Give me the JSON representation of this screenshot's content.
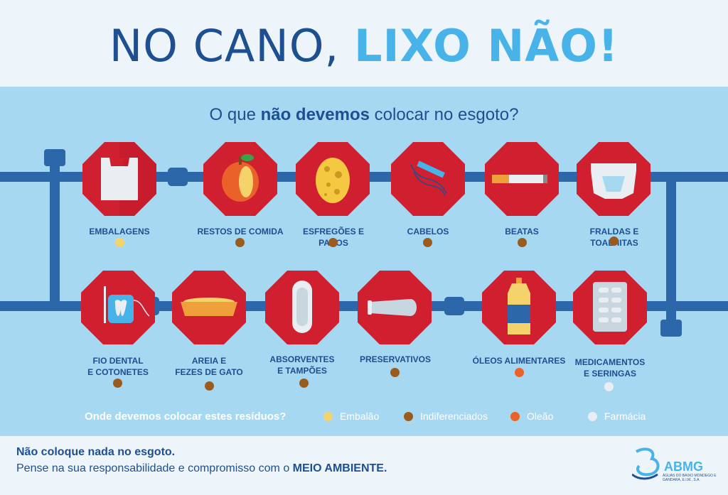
{
  "header": {
    "title_part1": "NO CANO, ",
    "title_part2": "LIXO NÃO!"
  },
  "subtitle": {
    "pre": "O que ",
    "bold": "não devemos",
    "post": " colocar no esgoto?"
  },
  "items_row1": [
    {
      "label": "EMBALAGENS",
      "icon": "plastic-bag-icon",
      "bin": "Embalão"
    },
    {
      "label": "RESTOS DE COMIDA",
      "icon": "apple-core-icon",
      "bin": "Indiferenciados"
    },
    {
      "label": "ESFREGÕES E PANOS",
      "icon": "sponge-icon",
      "bin": "Indiferenciados"
    },
    {
      "label": "CABELOS",
      "icon": "comb-icon",
      "bin": "Indiferenciados"
    },
    {
      "label": "BEATAS",
      "icon": "cigarette-icon",
      "bin": "Indiferenciados"
    },
    {
      "label": "FRALDAS E TOALHITAS",
      "icon": "diaper-icon",
      "bin": "Indiferenciados"
    }
  ],
  "items_row2": [
    {
      "label1": "FIO DENTAL",
      "label2": "E COTONETES",
      "icon": "dental-floss-icon",
      "bin": "Indiferenciados"
    },
    {
      "label1": "AREIA E",
      "label2": "FEZES DE GATO",
      "icon": "litter-tray-icon",
      "bin": "Indiferenciados"
    },
    {
      "label1": "ABSORVENTES",
      "label2": "E TAMPÕES",
      "icon": "sanitary-pad-icon",
      "bin": "Indiferenciados"
    },
    {
      "label1": "PRESERVATIVOS",
      "label2": "",
      "icon": "condom-icon",
      "bin": "Indiferenciados"
    },
    {
      "label1": "ÓLEOS ALIMENTARES",
      "label2": "",
      "icon": "oil-bottle-icon",
      "bin": "Oleão"
    },
    {
      "label1": "MEDICAMENTOS",
      "label2": "E SERINGAS",
      "icon": "pill-blister-icon",
      "bin": "Farmácia"
    }
  ],
  "legend": {
    "question": "Onde devemos colocar estes resíduos?",
    "entries": [
      {
        "label": "Embalão",
        "color": "#f5d36b"
      },
      {
        "label": "Indiferenciados",
        "color": "#9a5b1f"
      },
      {
        "label": "Oleão",
        "color": "#e8622a"
      },
      {
        "label": "Farmácia",
        "color": "#e8eef2"
      }
    ]
  },
  "footer": {
    "line1": "Não coloque nada no esgoto.",
    "line2_pre": "Pense na sua responsabilidade e compromisso com o ",
    "line2_bold": "MEIO AMBIENTE."
  },
  "logo": {
    "name": "ABMG",
    "tagline": "ÁGUAS DO BAIXO MONDEGO E GANDARA, E.I.M., S.A."
  },
  "colors": {
    "navy": "#1d4f91",
    "accent": "#48b3e8",
    "stop_red": "#d01f2e",
    "panel": "#a7d8f2"
  }
}
